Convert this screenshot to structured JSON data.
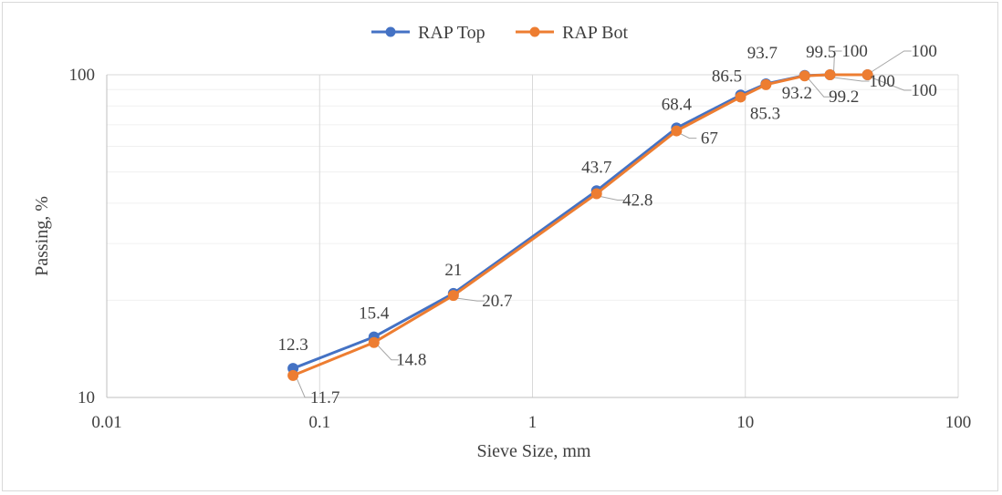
{
  "chart_data": {
    "type": "line",
    "xscale": "log",
    "yscale": "log",
    "xlabel": "Sieve Size, mm",
    "ylabel": "Passing, %",
    "xlim": [
      0.01,
      100
    ],
    "ylim": [
      10,
      100
    ],
    "xticks": [
      "0.01",
      "0.1",
      "1",
      "10",
      "100"
    ],
    "yticks": [
      "10",
      "100"
    ],
    "grid": true,
    "legend": "top-center",
    "series": [
      {
        "name": "RAP Top",
        "color": "#4472C4",
        "x": [
          0.075,
          0.18,
          0.425,
          2.0,
          4.75,
          9.5,
          12.5,
          19.0,
          25.0,
          37.5
        ],
        "values": [
          12.3,
          15.4,
          21,
          43.7,
          68.4,
          86.5,
          93.7,
          99.5,
          100,
          100
        ],
        "labels": [
          "12.3",
          "15.4",
          "21",
          "43.7",
          "68.4",
          "86.5",
          "93.7",
          "99.5",
          "100",
          "100"
        ]
      },
      {
        "name": "RAP Bot",
        "color": "#ED7D31",
        "x": [
          0.075,
          0.18,
          0.425,
          2.0,
          4.75,
          9.5,
          12.5,
          19.0,
          25.0,
          37.5
        ],
        "values": [
          11.7,
          14.8,
          20.7,
          42.8,
          67,
          85.3,
          93.2,
          99.2,
          100,
          100
        ],
        "labels": [
          "11.7",
          "14.8",
          "20.7",
          "42.8",
          "67",
          "85.3",
          "93.2",
          "99.2",
          "100",
          "100"
        ]
      }
    ]
  }
}
